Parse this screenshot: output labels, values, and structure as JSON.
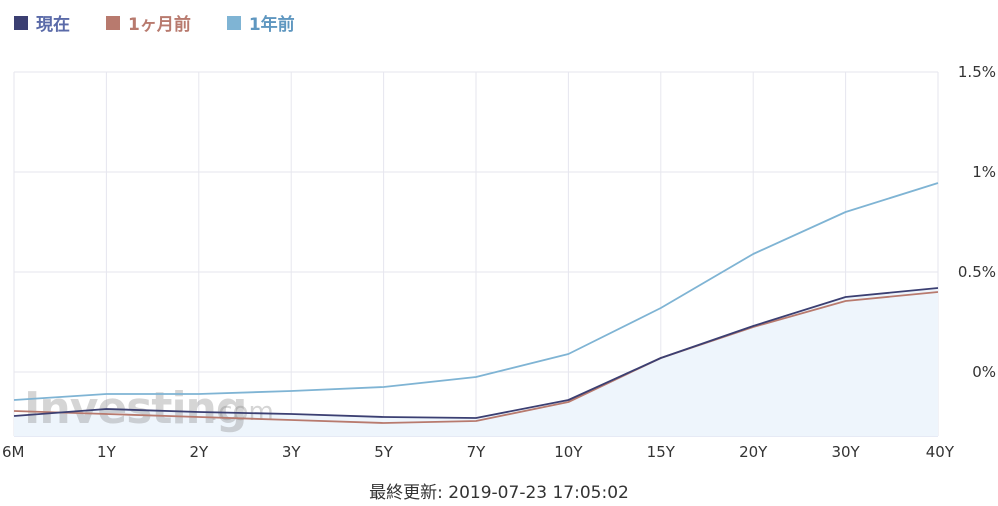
{
  "legend": {
    "items": [
      {
        "label": "現在",
        "color": "#3b3f72",
        "text_color": "#5a6aa8"
      },
      {
        "label": "1ヶ月前",
        "color": "#b87a6e",
        "text_color": "#b87a6e"
      },
      {
        "label": "1年前",
        "color": "#7fb4d4",
        "text_color": "#5f97c0"
      }
    ]
  },
  "watermark": {
    "main": "Investing",
    "suffix": ".com"
  },
  "footer": {
    "updated": "最終更新: 2019-07-23 17:05:02"
  },
  "chart_data": {
    "type": "line",
    "categories": [
      "6M",
      "1Y",
      "2Y",
      "3Y",
      "5Y",
      "7Y",
      "10Y",
      "15Y",
      "20Y",
      "30Y",
      "40Y"
    ],
    "yticks": [
      {
        "value": 1.5,
        "label": "1.5%"
      },
      {
        "value": 1.0,
        "label": "1%"
      },
      {
        "value": 0.5,
        "label": "0.5%"
      },
      {
        "value": 0.0,
        "label": "0%"
      }
    ],
    "ylim": [
      -0.32,
      1.5
    ],
    "series": [
      {
        "name": "1年前",
        "color": "#7fb4d4",
        "fill": false,
        "values": [
          -0.14,
          -0.11,
          -0.11,
          -0.095,
          -0.075,
          -0.025,
          0.09,
          0.32,
          0.59,
          0.8,
          0.945
        ]
      },
      {
        "name": "1ヶ月前",
        "color": "#b87a6e",
        "fill": false,
        "values": [
          -0.195,
          -0.21,
          -0.225,
          -0.24,
          -0.255,
          -0.245,
          -0.15,
          0.07,
          0.225,
          0.355,
          0.4
        ]
      },
      {
        "name": "現在",
        "color": "#3b3f72",
        "fill": true,
        "fill_color": "#eef5fc",
        "values": [
          -0.22,
          -0.185,
          -0.2,
          -0.21,
          -0.225,
          -0.23,
          -0.14,
          0.07,
          0.23,
          0.375,
          0.42
        ]
      }
    ]
  }
}
